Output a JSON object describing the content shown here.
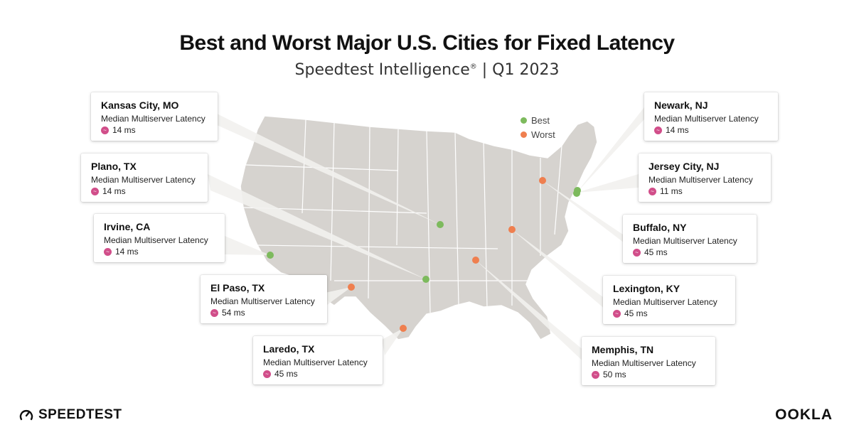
{
  "title": "Best and Worst Major U.S. Cities for Fixed Latency",
  "subtitle": {
    "main": "Speedtest Intelligence",
    "mark": "®",
    "period": "| Q1 2023"
  },
  "legend": [
    {
      "label": "Best",
      "color": "#7dba5d"
    },
    {
      "label": "Worst",
      "color": "#ef7f4f"
    }
  ],
  "colors": {
    "best": "#7dba5d",
    "worst": "#ef7f4f",
    "land": "#d6d3cf",
    "borders": "#ffffff",
    "latency_icon": "#d14e8a"
  },
  "cities": [
    {
      "name": "Kansas City, MO",
      "metric": "Median Multiserver Latency",
      "value": "14 ms",
      "group": "best"
    },
    {
      "name": "Plano, TX",
      "metric": "Median Multiserver Latency",
      "value": "14 ms",
      "group": "best"
    },
    {
      "name": "Irvine, CA",
      "metric": "Median Multiserver Latency",
      "value": "14 ms",
      "group": "best"
    },
    {
      "name": "El Paso, TX",
      "metric": "Median Multiserver Latency",
      "value": "54 ms",
      "group": "worst"
    },
    {
      "name": "Laredo, TX",
      "metric": "Median Multiserver Latency",
      "value": "45 ms",
      "group": "worst"
    },
    {
      "name": "Newark, NJ",
      "metric": "Median Multiserver Latency",
      "value": "14 ms",
      "group": "best"
    },
    {
      "name": "Jersey City, NJ",
      "metric": "Median Multiserver Latency",
      "value": "11 ms",
      "group": "best"
    },
    {
      "name": "Buffalo, NY",
      "metric": "Median Multiserver Latency",
      "value": "45 ms",
      "group": "worst"
    },
    {
      "name": "Lexington, KY",
      "metric": "Median Multiserver Latency",
      "value": "45 ms",
      "group": "worst"
    },
    {
      "name": "Memphis, TN",
      "metric": "Median Multiserver Latency",
      "value": "50 ms",
      "group": "worst"
    }
  ],
  "branding": {
    "speedtest": "SPEEDTEST",
    "ookla": "OOKLA"
  }
}
